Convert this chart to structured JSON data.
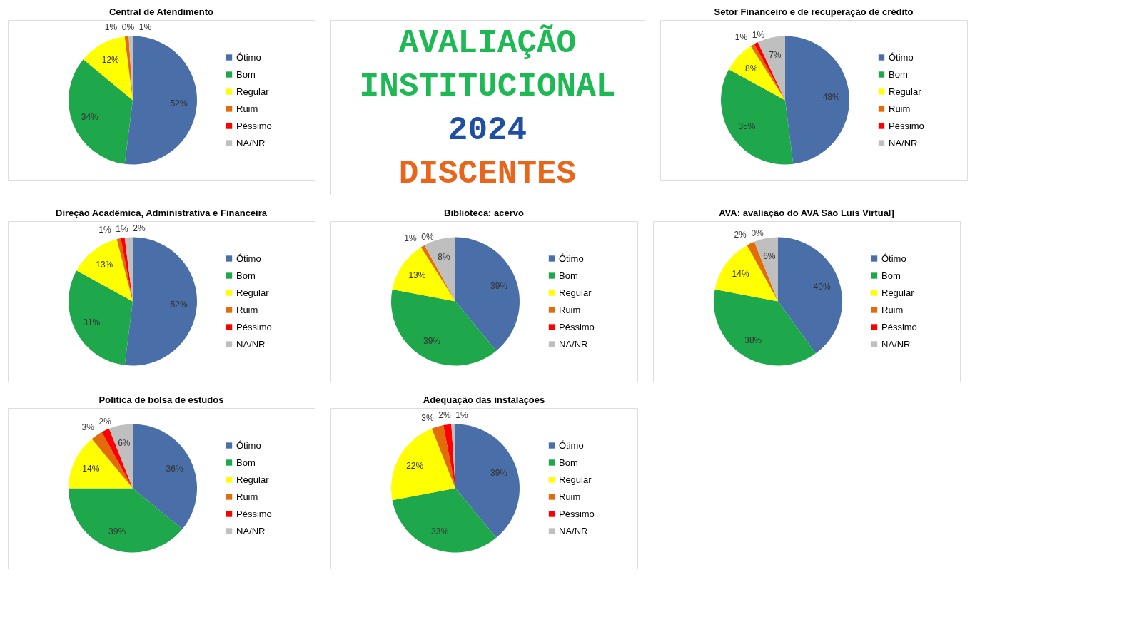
{
  "chart_data": [
    {
      "type": "pie",
      "title": "Central de Atendimento",
      "categories": [
        "Ótimo",
        "Bom",
        "Regular",
        "Ruim",
        "Péssimo",
        "NA/NR"
      ],
      "values": [
        52,
        34,
        12,
        1,
        0,
        1
      ],
      "value_labels": [
        "52%",
        "34%",
        "12%",
        "1%",
        "0%",
        "1%"
      ],
      "colors": [
        "#4a6fa8",
        "#1ea84b",
        "#ffff00",
        "#e36c0a",
        "#ff0000",
        "#bfbfbf"
      ],
      "legend": "right"
    },
    {
      "type": "other",
      "title": "AVALIAÇÃO INSTITUCIONAL",
      "subtitle": "2024",
      "annotations": [
        "DISCENTES"
      ]
    },
    {
      "type": "pie",
      "title": "Setor Financeiro e de recuperação de crédito",
      "categories": [
        "Ótimo",
        "Bom",
        "Regular",
        "Ruim",
        "Péssimo",
        "NA/NR"
      ],
      "values": [
        48,
        35,
        8,
        1,
        1,
        7
      ],
      "value_labels": [
        "48%",
        "35%",
        "8%",
        "1%",
        "1%",
        "7%"
      ],
      "colors": [
        "#4a6fa8",
        "#1ea84b",
        "#ffff00",
        "#e36c0a",
        "#ff0000",
        "#bfbfbf"
      ],
      "legend": "right"
    },
    {
      "type": "pie",
      "title": "Direção Acadêmica, Administrativa e Financeira",
      "categories": [
        "Ótimo",
        "Bom",
        "Regular",
        "Ruim",
        "Péssimo",
        "NA/NR"
      ],
      "values": [
        52,
        31,
        13,
        1,
        1,
        2
      ],
      "value_labels": [
        "52%",
        "31%",
        "13%",
        "1%",
        "1%",
        "2%"
      ],
      "colors": [
        "#4a6fa8",
        "#1ea84b",
        "#ffff00",
        "#e36c0a",
        "#ff0000",
        "#bfbfbf"
      ],
      "legend": "right"
    },
    {
      "type": "pie",
      "title": "Biblioteca: acervo",
      "categories": [
        "Ótimo",
        "Bom",
        "Regular",
        "Ruim",
        "Péssimo",
        "NA/NR"
      ],
      "values": [
        39,
        39,
        13,
        1,
        0,
        8
      ],
      "value_labels": [
        "39%",
        "39%",
        "13%",
        "1%",
        "0%",
        "8%"
      ],
      "colors": [
        "#4a6fa8",
        "#1ea84b",
        "#ffff00",
        "#e36c0a",
        "#ff0000",
        "#bfbfbf"
      ],
      "legend": "right"
    },
    {
      "type": "pie",
      "title": "AVA: avaliação do AVA São Luis Virtual]",
      "categories": [
        "Ótimo",
        "Bom",
        "Regular",
        "Ruim",
        "Péssimo",
        "NA/NR"
      ],
      "values": [
        40,
        38,
        14,
        2,
        0,
        6
      ],
      "value_labels": [
        "40%",
        "38%",
        "14%",
        "2%",
        "0%",
        "6%"
      ],
      "colors": [
        "#4a6fa8",
        "#1ea84b",
        "#ffff00",
        "#e36c0a",
        "#ff0000",
        "#bfbfbf"
      ],
      "legend": "right"
    },
    {
      "type": "pie",
      "title": "Política de bolsa de estudos",
      "categories": [
        "Ótimo",
        "Bom",
        "Regular",
        "Ruim",
        "Péssimo",
        "NA/NR"
      ],
      "values": [
        36,
        39,
        14,
        3,
        2,
        6
      ],
      "value_labels": [
        "36%",
        "39%",
        "14%",
        "3%",
        "2%",
        "6%"
      ],
      "colors": [
        "#4a6fa8",
        "#1ea84b",
        "#ffff00",
        "#e36c0a",
        "#ff0000",
        "#bfbfbf"
      ],
      "legend": "right"
    },
    {
      "type": "pie",
      "title": "Adequação das instalações",
      "categories": [
        "Ótimo",
        "Bom",
        "Regular",
        "Ruim",
        "Péssimo",
        "NA/NR"
      ],
      "values": [
        39,
        33,
        22,
        3,
        2,
        1
      ],
      "value_labels": [
        "39%",
        "33%",
        "22%",
        "3%",
        "2%",
        "1%"
      ],
      "colors": [
        "#4a6fa8",
        "#1ea84b",
        "#ffff00",
        "#e36c0a",
        "#ff0000",
        "#bfbfbf"
      ],
      "legend": "right"
    }
  ]
}
